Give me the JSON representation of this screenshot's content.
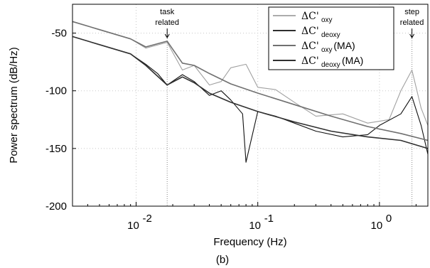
{
  "chart_data": {
    "type": "line",
    "xlabel": "Frequency (Hz)",
    "ylabel": "Power spectrum (dB/Hz)",
    "x_scale": "log",
    "xlim": [
      0.003,
      2.5
    ],
    "ylim": [
      -200,
      -25
    ],
    "y_ticks": [
      -50,
      -100,
      -150,
      -200
    ],
    "y_tick_labels": [
      "-50",
      "-100",
      "-150",
      "-200"
    ],
    "x_ticks": [
      0.01,
      0.1,
      1
    ],
    "x_tick_labels": [
      {
        "base": "10",
        "exp": "-2"
      },
      {
        "base": "10",
        "exp": "-1"
      },
      {
        "base": "10",
        "exp": "0"
      }
    ],
    "grid": "dotted",
    "legend_position": "top-right",
    "panel_label": "(b)",
    "annotations": [
      {
        "line1": "task",
        "line2": "related",
        "x": 0.018
      },
      {
        "line1": "step",
        "line2": "related",
        "x": 1.85
      }
    ],
    "series": [
      {
        "name": "ΔC'oxy",
        "legend_main": "ΔC'",
        "legend_sub": "oxy",
        "legend_suffix": "",
        "color": "#a0a0a0",
        "x": [
          0.003,
          0.005,
          0.009,
          0.012,
          0.018,
          0.024,
          0.03,
          0.04,
          0.05,
          0.06,
          0.08,
          0.1,
          0.14,
          0.2,
          0.3,
          0.5,
          0.8,
          1.2,
          1.5,
          1.85,
          2.2,
          2.5
        ],
        "y": [
          -40,
          -47,
          -55,
          -63,
          -58,
          -82,
          -78,
          -95,
          -92,
          -80,
          -77,
          -97,
          -99,
          -110,
          -122,
          -120,
          -128,
          -125,
          -100,
          -82,
          -115,
          -130
        ]
      },
      {
        "name": "ΔC'deoxy",
        "legend_main": "ΔC'",
        "legend_sub": "deoxy",
        "legend_suffix": "",
        "color": "#111111",
        "x": [
          0.003,
          0.005,
          0.009,
          0.012,
          0.015,
          0.018,
          0.024,
          0.03,
          0.04,
          0.05,
          0.06,
          0.075,
          0.08,
          0.1,
          0.14,
          0.2,
          0.3,
          0.5,
          0.8,
          1.0,
          1.5,
          1.85,
          2.2,
          2.5
        ],
        "y": [
          -53,
          -60,
          -68,
          -77,
          -85,
          -95,
          -86,
          -92,
          -104,
          -100,
          -108,
          -120,
          -162,
          -118,
          -122,
          -128,
          -135,
          -140,
          -138,
          -130,
          -120,
          -105,
          -130,
          -155
        ]
      },
      {
        "name": "ΔC'oxy (MA)",
        "legend_main": "ΔC'",
        "legend_sub": "oxy",
        "legend_suffix": " (MA)",
        "color": "#707070",
        "x": [
          0.003,
          0.005,
          0.009,
          0.012,
          0.018,
          0.024,
          0.03,
          0.04,
          0.06,
          0.1,
          0.2,
          0.4,
          0.8,
          1.5,
          2.5
        ],
        "y": [
          -40,
          -47,
          -55,
          -62,
          -57,
          -76,
          -78,
          -85,
          -94,
          -102,
          -112,
          -122,
          -131,
          -137,
          -143
        ]
      },
      {
        "name": "ΔC'deoxy (MA)",
        "legend_main": "ΔC'",
        "legend_sub": "deoxy",
        "legend_suffix": " (MA)",
        "color": "#303030",
        "x": [
          0.003,
          0.005,
          0.009,
          0.012,
          0.018,
          0.024,
          0.03,
          0.04,
          0.06,
          0.1,
          0.2,
          0.4,
          0.8,
          1.5,
          2.5
        ],
        "y": [
          -53,
          -60,
          -68,
          -78,
          -95,
          -88,
          -93,
          -102,
          -110,
          -118,
          -127,
          -135,
          -140,
          -143,
          -150
        ]
      }
    ]
  }
}
